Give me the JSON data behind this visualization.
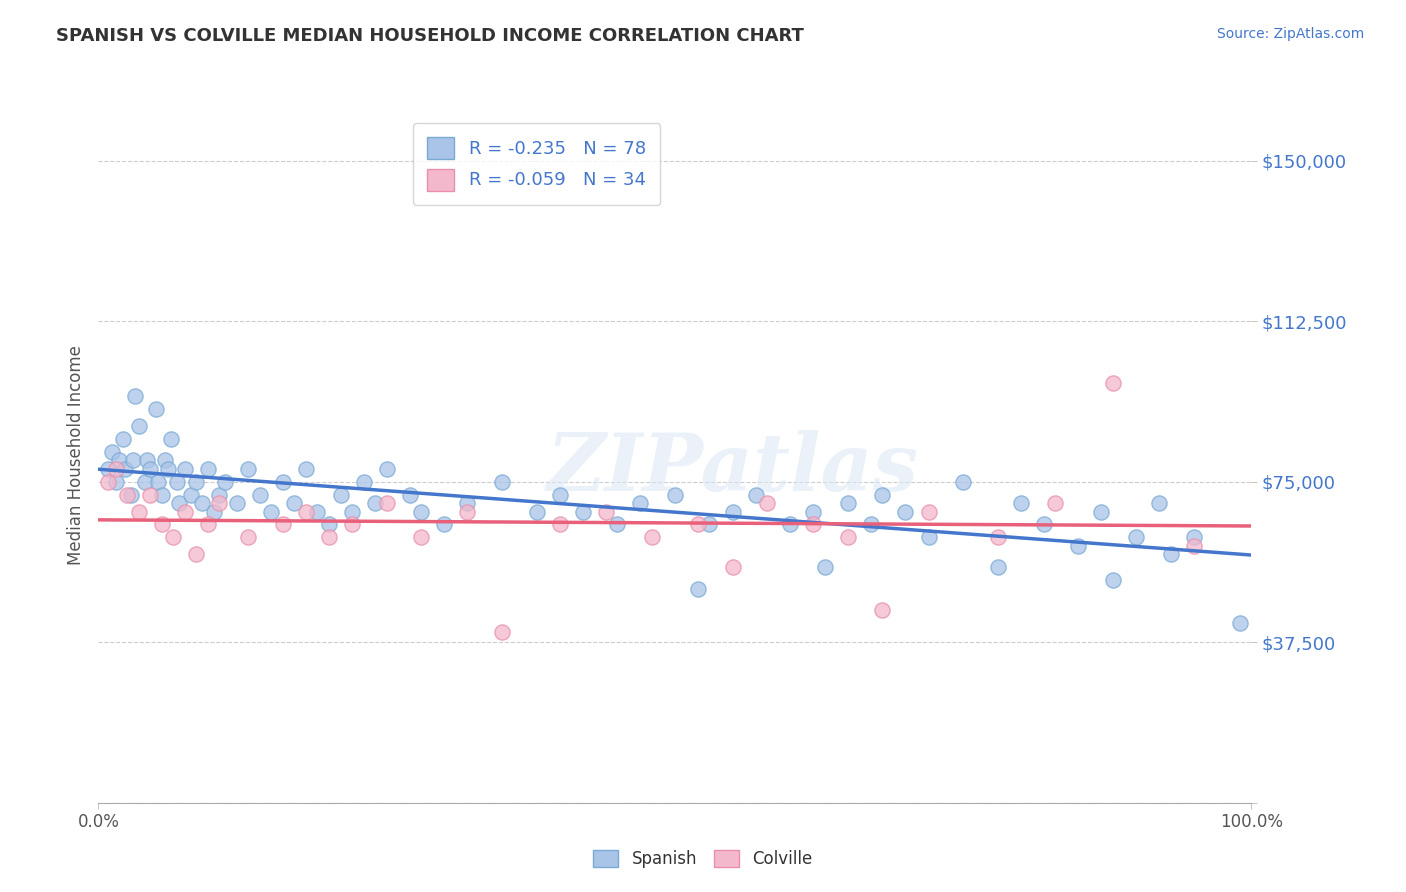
{
  "title": "SPANISH VS COLVILLE MEDIAN HOUSEHOLD INCOME CORRELATION CHART",
  "source": "Source: ZipAtlas.com",
  "ylabel": "Median Household Income",
  "xlim": [
    0.0,
    100.0
  ],
  "ylim": [
    0,
    162500
  ],
  "yticks": [
    0,
    37500,
    75000,
    112500,
    150000
  ],
  "ytick_labels": [
    "",
    "$37,500",
    "$75,000",
    "$112,500",
    "$150,000"
  ],
  "spanish_color": "#aac4e8",
  "spanish_edge_color": "#7aaad4",
  "colville_color": "#f4b8cc",
  "colville_edge_color": "#e890aa",
  "spanish_line_color": "#4477cc",
  "colville_line_color": "#e8607a",
  "R_spanish": -0.235,
  "N_spanish": 78,
  "R_colville": -0.059,
  "N_colville": 34,
  "watermark": "ZIPatlas",
  "background_color": "#ffffff",
  "grid_color": "#cccccc",
  "ytick_color": "#4477cc",
  "title_color": "#333333",
  "source_color": "#4477cc",
  "legend_label_color": "#4477cc",
  "spanish_x": [
    0.8,
    1.2,
    1.5,
    1.8,
    2.1,
    2.3,
    2.8,
    3.0,
    3.2,
    3.5,
    4.0,
    4.2,
    4.5,
    5.0,
    5.2,
    5.5,
    5.8,
    6.0,
    6.3,
    6.8,
    7.0,
    7.5,
    8.0,
    8.5,
    9.0,
    9.5,
    10.0,
    10.5,
    11.0,
    12.0,
    13.0,
    14.0,
    15.0,
    16.0,
    17.0,
    18.0,
    19.0,
    20.0,
    21.0,
    22.0,
    23.0,
    24.0,
    25.0,
    27.0,
    28.0,
    30.0,
    32.0,
    35.0,
    38.0,
    40.0,
    42.0,
    45.0,
    47.0,
    50.0,
    52.0,
    53.0,
    55.0,
    57.0,
    60.0,
    62.0,
    63.0,
    65.0,
    67.0,
    68.0,
    70.0,
    72.0,
    75.0,
    78.0,
    80.0,
    82.0,
    85.0,
    87.0,
    88.0,
    90.0,
    92.0,
    93.0,
    95.0,
    99.0
  ],
  "spanish_y": [
    78000,
    82000,
    75000,
    80000,
    85000,
    78000,
    72000,
    80000,
    95000,
    88000,
    75000,
    80000,
    78000,
    92000,
    75000,
    72000,
    80000,
    78000,
    85000,
    75000,
    70000,
    78000,
    72000,
    75000,
    70000,
    78000,
    68000,
    72000,
    75000,
    70000,
    78000,
    72000,
    68000,
    75000,
    70000,
    78000,
    68000,
    65000,
    72000,
    68000,
    75000,
    70000,
    78000,
    72000,
    68000,
    65000,
    70000,
    75000,
    68000,
    72000,
    68000,
    65000,
    70000,
    72000,
    50000,
    65000,
    68000,
    72000,
    65000,
    68000,
    55000,
    70000,
    65000,
    72000,
    68000,
    62000,
    75000,
    55000,
    70000,
    65000,
    60000,
    68000,
    52000,
    62000,
    70000,
    58000,
    62000,
    42000
  ],
  "colville_x": [
    0.8,
    1.5,
    2.5,
    3.5,
    4.5,
    5.5,
    6.5,
    7.5,
    8.5,
    9.5,
    10.5,
    13.0,
    16.0,
    18.0,
    20.0,
    22.0,
    25.0,
    28.0,
    32.0,
    35.0,
    40.0,
    44.0,
    48.0,
    52.0,
    55.0,
    58.0,
    62.0,
    65.0,
    68.0,
    72.0,
    78.0,
    83.0,
    88.0,
    95.0
  ],
  "colville_y": [
    75000,
    78000,
    72000,
    68000,
    72000,
    65000,
    62000,
    68000,
    58000,
    65000,
    70000,
    62000,
    65000,
    68000,
    62000,
    65000,
    70000,
    62000,
    68000,
    40000,
    65000,
    68000,
    62000,
    65000,
    55000,
    70000,
    65000,
    62000,
    45000,
    68000,
    62000,
    70000,
    98000,
    60000
  ]
}
